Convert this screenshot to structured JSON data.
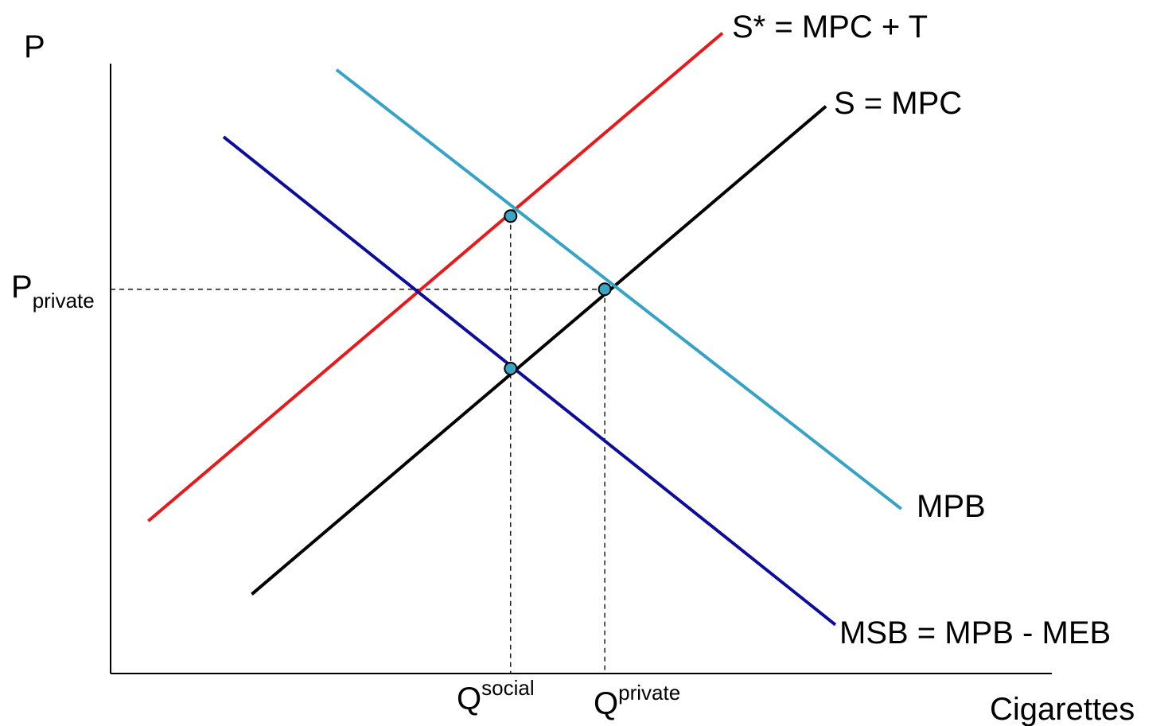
{
  "chart_data": {
    "type": "line",
    "title": "",
    "xlabel": "Cigarettes",
    "ylabel": "P",
    "xlim": [
      0,
      10
    ],
    "ylim": [
      0,
      10
    ],
    "grid": false,
    "series": [
      {
        "name": "S* = MPC + T",
        "color": "#e8191a",
        "x": [
          0.4,
          6.5
        ],
        "y": [
          2.5,
          10.5
        ]
      },
      {
        "name": "S = MPC",
        "color": "#000000",
        "x": [
          1.5,
          7.6
        ],
        "y": [
          1.3,
          9.3
        ]
      },
      {
        "name": "MPB",
        "color": "#36a2c5",
        "x": [
          2.4,
          8.4
        ],
        "y": [
          9.9,
          2.7
        ]
      },
      {
        "name": "MSB = MPB - MEB",
        "color": "#0d0d9c",
        "x": [
          1.2,
          7.7
        ],
        "y": [
          8.8,
          0.8
        ]
      }
    ],
    "equilibria": [
      {
        "x": 4.25,
        "y": 7.5
      },
      {
        "x": 5.25,
        "y": 6.3
      },
      {
        "x": 4.25,
        "y": 5.0
      }
    ],
    "reference_lines": {
      "p_private": 6.3,
      "q_social": 4.25,
      "q_private": 5.25
    },
    "tick_labels": {
      "p_private": {
        "main": "P",
        "sub": "private"
      },
      "q_social": {
        "main": "Q",
        "sup": "social"
      },
      "q_private": {
        "main": "Q",
        "sup": "private"
      }
    }
  }
}
